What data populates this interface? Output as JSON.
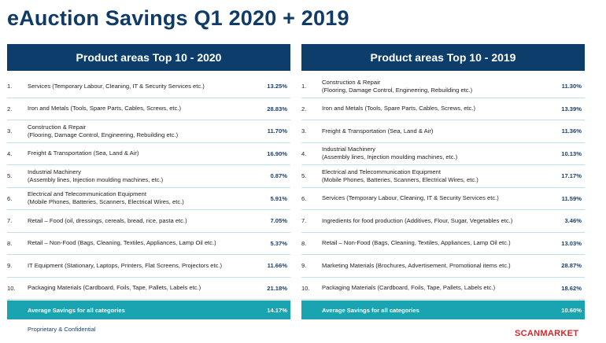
{
  "title": "eAuction Savings Q1 2020 + 2019",
  "left_panel": {
    "header": "Product areas Top 10 - 2020",
    "rows": [
      {
        "num": "1.",
        "line1": "Services (Temporary Labour, Cleaning, IT & Security Services etc.)",
        "line2": "",
        "value": "13.25%"
      },
      {
        "num": "2.",
        "line1": "Iron and Metals (Tools, Spare Parts, Cables, Screws, etc.)",
        "line2": "",
        "value": "28.83%"
      },
      {
        "num": "3.",
        "line1": "Construction & Repair",
        "line2": "(Flooring, Damage Control, Engineering, Rebuilding etc.)",
        "value": "11.70%"
      },
      {
        "num": "4.",
        "line1": "Freight & Transportation (Sea, Land & Air)",
        "line2": "",
        "value": "16.90%"
      },
      {
        "num": "5.",
        "line1": "Industrial Machinery",
        "line2": "(Assembly lines, Injection moulding machines, etc.)",
        "value": "0.87%"
      },
      {
        "num": "6.",
        "line1": "Electrical and Telecommunication Equipment",
        "line2": "(Mobile Phones, Batteries, Scanners, Electrical Wires, etc.)",
        "value": "5.91%"
      },
      {
        "num": "7.",
        "line1": "Retail –  Food (oil, dressings, cereals, bread, rice, pasta etc.)",
        "line2": "",
        "value": "7.05%"
      },
      {
        "num": "8.",
        "line1": "Retail – Non-Food (Bags, Cleaning, Textiles, Appliances, Lamp Oil etc.)",
        "line2": "",
        "value": "5.37%"
      },
      {
        "num": "9.",
        "line1": "IT Equipment (Stationary, Laptops, Printers, Flat Screens, Projectors etc.)",
        "line2": "",
        "value": "11.66%"
      },
      {
        "num": "10.",
        "line1": "Packaging Materials (Cardboard, Foils, Tape, Pallets, Labels etc.)",
        "line2": "",
        "value": "21.18%"
      }
    ],
    "avg_label": "Average Savings for all categories",
    "avg_value": "14.17%"
  },
  "right_panel": {
    "header": "Product areas Top 10 - 2019",
    "rows": [
      {
        "num": "1.",
        "line1": "Construction & Repair",
        "line2": "(Flooring, Damage Control, Engineering, Rebuilding etc.)",
        "value": "11.30%"
      },
      {
        "num": "2.",
        "line1": "Iron and Metals (Tools, Spare Parts, Cables, Screws, etc.)",
        "line2": "",
        "value": "13.39%"
      },
      {
        "num": "3.",
        "line1": "Freight & Transportation (Sea, Land & Air)",
        "line2": "",
        "value": "11.36%"
      },
      {
        "num": "4.",
        "line1": "Industrial Machinery",
        "line2": "(Assembly lines, Injection moulding machines, etc.)",
        "value": "10.13%"
      },
      {
        "num": "5.",
        "line1": "Electrical and Telecommunication Equipment",
        "line2": "(Mobile Phones, Batteries, Scanners, Electrical Wires, etc.)",
        "value": "17.17%"
      },
      {
        "num": "6.",
        "line1": "Services (Temporary Labour, Cleaning, IT & Security Services etc.)",
        "line2": "",
        "value": "11.59%"
      },
      {
        "num": "7.",
        "line1": "Ingredients for food production (Additives, Flour, Sugar, Vegetables etc.)",
        "line2": "",
        "value": "3.46%"
      },
      {
        "num": "8.",
        "line1": "Retail – Non-Food (Bags, Cleaning, Textiles, Appliances, Lamp Oil etc.)",
        "line2": "",
        "value": "13.03%"
      },
      {
        "num": "9.",
        "line1": "Marketing Materials (Brochures, Advertisement, Promotional items etc.)",
        "line2": "",
        "value": "28.87%"
      },
      {
        "num": "10.",
        "line1": "Packaging Materials (Cardboard, Foils, Tape, Pallets, Labels etc.)",
        "line2": "",
        "value": "18.62%"
      }
    ],
    "avg_label": "Average Savings for all categories",
    "avg_value": "10.60%"
  },
  "footer": {
    "confidential": "Proprietary & Confidential",
    "logo": "SCANMARKET"
  },
  "colors": {
    "title": "#0f3b66",
    "header_bg": "#0d3e6b",
    "avg_bg": "#1aa3b1",
    "logo": "#d9262a"
  }
}
